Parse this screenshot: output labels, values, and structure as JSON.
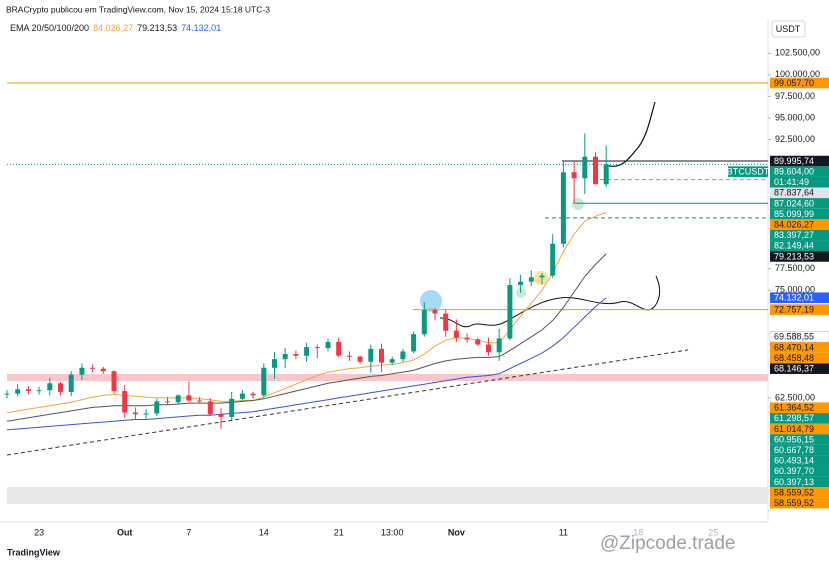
{
  "chart_data": {
    "type": "candlestick",
    "header": "BRACrypto publicou em TradingView.com, Nov 15, 2024 15:18 UTC-3",
    "indicator_title": "EMA 20/50/100/200",
    "currency": "USDT",
    "symbol": "BTCUSDT",
    "countdown": "01:41:49",
    "footer": "TradingView",
    "watermark": "@Zipcode.trade",
    "up_color": "#089981",
    "down_color": "#f23645",
    "categories": [
      null,
      null,
      null,
      "23",
      null,
      null,
      null,
      null,
      null,
      null,
      null,
      "Out",
      null,
      null,
      null,
      null,
      null,
      "7",
      null,
      null,
      null,
      null,
      null,
      null,
      "14",
      null,
      null,
      null,
      null,
      null,
      null,
      "21",
      null,
      null,
      null,
      null,
      "13:00",
      null,
      null,
      null,
      null,
      null,
      "Nov",
      null,
      null,
      null,
      null,
      null,
      null,
      null,
      null,
      null,
      "11",
      null,
      null,
      null,
      null,
      null,
      null,
      "18",
      null,
      null,
      null,
      null,
      null,
      null,
      "25"
    ],
    "open": [
      62900,
      63000,
      63500,
      63300,
      63400,
      64200,
      63200,
      65200,
      66000,
      65900,
      65600,
      63300,
      60800,
      60600,
      60700,
      62100,
      62000,
      62800,
      62200,
      62100,
      60600,
      60300,
      62400,
      63000,
      62800,
      66000,
      67000,
      67600,
      67400,
      68400,
      68300,
      69000,
      67400,
      67300,
      66700,
      68200,
      66600,
      67000,
      67900,
      69900,
      72700,
      72300,
      70300,
      69500,
      69300,
      68700,
      67800,
      69400,
      75600,
      76000,
      76500,
      76700,
      80400,
      88700,
      88000,
      90500,
      87300,
      null,
      null,
      null,
      null,
      null,
      null,
      null,
      null,
      null,
      null
    ],
    "high": [
      63400,
      64100,
      63900,
      63800,
      64800,
      64400,
      65600,
      66500,
      66400,
      66100,
      65700,
      64000,
      61400,
      61200,
      62400,
      62600,
      62900,
      64400,
      62600,
      62500,
      61300,
      63200,
      63400,
      63200,
      66500,
      67800,
      68300,
      68000,
      68900,
      68700,
      69400,
      69500,
      67900,
      67400,
      68700,
      68800,
      67300,
      68200,
      70200,
      73600,
      72900,
      72700,
      71600,
      70000,
      69500,
      69500,
      70500,
      76400,
      76800,
      77300,
      77000,
      81500,
      89900,
      89900,
      93200,
      91000,
      91800,
      null,
      null,
      null,
      null,
      null,
      null,
      null,
      null,
      null,
      null
    ],
    "low": [
      62500,
      62700,
      62900,
      62900,
      62800,
      62800,
      62700,
      64600,
      65500,
      65300,
      63000,
      60200,
      60000,
      60000,
      60400,
      61700,
      61700,
      62000,
      61900,
      60400,
      58900,
      59900,
      62200,
      62400,
      62600,
      64700,
      66000,
      67000,
      66700,
      67100,
      67900,
      67200,
      66800,
      66500,
      65400,
      65500,
      66300,
      66700,
      67700,
      69600,
      71500,
      69600,
      69000,
      68900,
      68500,
      67400,
      66800,
      69200,
      74700,
      75500,
      75700,
      76400,
      80000,
      85000,
      86200,
      87300,
      87000,
      null,
      null,
      null,
      null,
      null,
      null,
      null,
      null,
      null,
      null
    ],
    "close": [
      63000,
      63500,
      63300,
      63400,
      64200,
      63200,
      65200,
      66000,
      65900,
      65600,
      63300,
      60800,
      60600,
      60700,
      62100,
      62000,
      62800,
      62200,
      62100,
      60600,
      60300,
      62400,
      63000,
      62800,
      66000,
      67000,
      67600,
      67400,
      68400,
      68300,
      69000,
      67400,
      67300,
      66700,
      68200,
      66600,
      67000,
      67900,
      69900,
      72700,
      72300,
      70300,
      69500,
      69300,
      68700,
      67800,
      69400,
      75600,
      76000,
      76500,
      76700,
      80400,
      88700,
      88000,
      90500,
      87300,
      89604,
      null,
      null,
      null,
      null,
      null,
      null,
      null,
      null,
      null,
      null
    ],
    "series": [
      {
        "color": "#f7a33b",
        "values": [
          60800,
          61000,
          61200,
          61400,
          61600,
          61800,
          62000,
          62300,
          62600,
          62800,
          62900,
          62800,
          62700,
          62600,
          62500,
          62500,
          62500,
          62500,
          62400,
          62300,
          62100,
          62100,
          62200,
          62200,
          62600,
          63100,
          63600,
          64100,
          64600,
          65100,
          65500,
          65700,
          65900,
          66000,
          66200,
          66300,
          66400,
          66600,
          66900,
          67600,
          68500,
          69200,
          69500,
          69400,
          69200,
          68900,
          68900,
          70400,
          72000,
          73500,
          75000,
          77000,
          79500,
          81500,
          83000,
          83600,
          84026.27,
          null,
          null,
          null,
          null,
          null,
          null,
          null,
          null,
          null,
          null
        ]
      },
      {
        "color": "#555555",
        "values": [
          59800,
          60000,
          60200,
          60400,
          60600,
          60800,
          61000,
          61200,
          61400,
          61500,
          61600,
          61600,
          61600,
          61600,
          61700,
          61700,
          61800,
          61900,
          61900,
          61900,
          61900,
          62000,
          62100,
          62200,
          62400,
          62700,
          63000,
          63300,
          63600,
          63900,
          64200,
          64400,
          64600,
          64800,
          65000,
          65100,
          65300,
          65500,
          65700,
          66100,
          66500,
          66800,
          67000,
          67100,
          67200,
          67200,
          67300,
          68000,
          68800,
          69600,
          70400,
          71500,
          73000,
          74800,
          76600,
          78000,
          79213.53,
          null,
          null,
          null,
          null,
          null,
          null,
          null,
          null,
          null,
          null
        ]
      },
      {
        "color": "#3f51d8",
        "values": [
          58800,
          58900,
          59000,
          59100,
          59200,
          59300,
          59400,
          59500,
          59600,
          59700,
          59800,
          59900,
          60000,
          60000,
          60100,
          60200,
          60300,
          60400,
          60500,
          60500,
          60600,
          60700,
          60800,
          60900,
          61100,
          61300,
          61500,
          61700,
          61900,
          62100,
          62300,
          62500,
          62700,
          62900,
          63100,
          63300,
          63500,
          63700,
          63900,
          64100,
          64300,
          64500,
          64700,
          64900,
          65000,
          65100,
          65300,
          65900,
          66500,
          67100,
          67700,
          68500,
          69500,
          70700,
          71900,
          73100,
          74132.01,
          null,
          null,
          null,
          null,
          null,
          null,
          null,
          null,
          null,
          null
        ]
      }
    ],
    "ylim": [
      48100,
      106600
    ],
    "yticks": [
      {
        "value": 102500,
        "label": "102.500,00"
      },
      {
        "value": 100000,
        "label": "100.000,00"
      },
      {
        "value": 97500,
        "label": "97.500,00"
      },
      {
        "value": 95000,
        "label": "95.000,00"
      },
      {
        "value": 92500,
        "label": "92.500,00"
      },
      {
        "value": 77500,
        "label": "77.500,00"
      },
      {
        "value": 75000,
        "label": "75.000,00"
      },
      {
        "value": 62500,
        "label": "62.500,00"
      }
    ],
    "price_tags": [
      {
        "value": 99057.7,
        "label": "99.057,70",
        "color": "#ff9800"
      },
      {
        "value": 89995.74,
        "label": "89.995,74",
        "color": "#131722"
      },
      {
        "value": 89604.0,
        "label": "89.604,00",
        "color": "#089981"
      },
      {
        "value": 87837.64,
        "label": "87.837,64",
        "color": "#e0e3eb"
      },
      {
        "value": 87024.6,
        "label": "87.024,60",
        "color": "#089981"
      },
      {
        "value": 85099.99,
        "label": "85.099,99",
        "color": "#089981"
      },
      {
        "value": 84026.27,
        "label": "84.026,27",
        "color": "#ff9800"
      },
      {
        "value": 83397.27,
        "label": "83.397,27",
        "color": "#089981"
      },
      {
        "value": 82149.44,
        "label": "82.149,44",
        "color": "#089981"
      },
      {
        "value": 79213.53,
        "label": "79.213,53",
        "color": "#131722"
      },
      {
        "value": 74132.01,
        "label": "74.132,01",
        "color": "#2962ff"
      },
      {
        "value": 72757.19,
        "label": "72.757,19",
        "color": "#ff9800"
      },
      {
        "value": 69588.55,
        "label": "69.588,55",
        "color": "#ffffff"
      },
      {
        "value": 68470.14,
        "label": "68.470,14",
        "color": "#ff9800"
      },
      {
        "value": 68458.48,
        "label": "68.458,48",
        "color": "#ff9800"
      },
      {
        "value": 68146.37,
        "label": "68.146,37",
        "color": "#131722"
      },
      {
        "value": 61364.52,
        "label": "61.364,52",
        "color": "#ff9800"
      },
      {
        "value": 61298.57,
        "label": "61.298,57",
        "color": "#089981"
      },
      {
        "value": 61014.79,
        "label": "61.014,79",
        "color": "#ff9800"
      },
      {
        "value": 60956.15,
        "label": "60.956,15",
        "color": "#089981"
      },
      {
        "value": 60667.78,
        "label": "60.667,78",
        "color": "#089981"
      },
      {
        "value": 60493.14,
        "label": "60.493,14",
        "color": "#089981"
      },
      {
        "value": 60397.7,
        "label": "60.397,70",
        "color": "#089981"
      },
      {
        "value": 60397.13,
        "label": "60.397,13",
        "color": "#089981"
      },
      {
        "value": 58559.52,
        "label": "58.559,52",
        "color": "#ff9800"
      },
      {
        "value": 58559.52,
        "label": "58.559,52",
        "color": "#ff9800"
      }
    ]
  }
}
